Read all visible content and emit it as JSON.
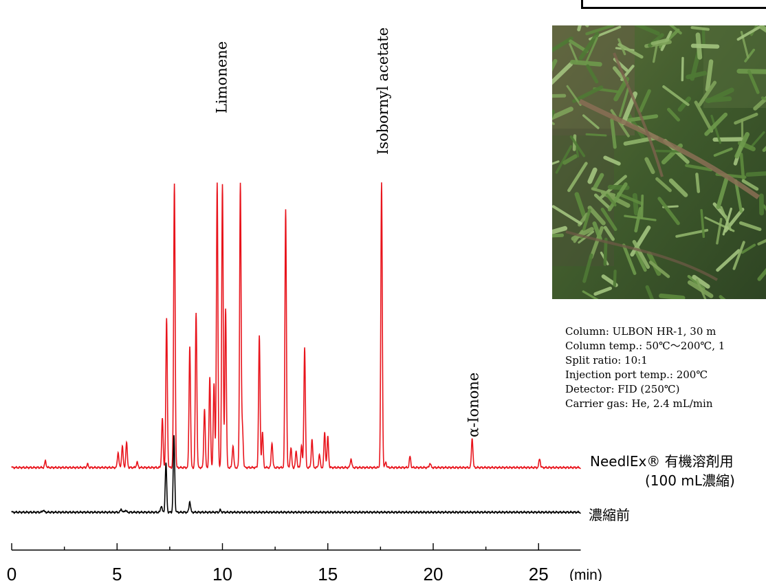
{
  "chart_data": {
    "type": "line",
    "xlabel": "(min)",
    "xlim": [
      0,
      27
    ],
    "x_ticks": [
      0,
      5,
      10,
      15,
      20,
      25
    ],
    "series": [
      {
        "name": "NeedlEx® 有機溶剤用",
        "sublabel": "(100 mL濃縮)",
        "color": "#e8141c",
        "peaks": [
          [
            1.6,
            0.06
          ],
          [
            3.6,
            0.03
          ],
          [
            5.05,
            0.14
          ],
          [
            5.25,
            0.2
          ],
          [
            5.45,
            0.23
          ],
          [
            5.95,
            0.05
          ],
          [
            7.15,
            0.45
          ],
          [
            7.35,
            1.36
          ],
          [
            7.72,
            2.6
          ],
          [
            8.45,
            1.11
          ],
          [
            8.75,
            1.42
          ],
          [
            9.15,
            0.54
          ],
          [
            9.4,
            0.82
          ],
          [
            9.6,
            0.77
          ],
          [
            9.75,
            2.6
          ],
          [
            10.0,
            2.6
          ],
          [
            10.15,
            1.46
          ],
          [
            10.5,
            0.2
          ],
          [
            10.85,
            2.6
          ],
          [
            10.95,
            0.36
          ],
          [
            11.75,
            1.2
          ],
          [
            11.9,
            0.32
          ],
          [
            12.35,
            0.23
          ],
          [
            13.0,
            2.36
          ],
          [
            13.25,
            0.18
          ],
          [
            13.5,
            0.15
          ],
          [
            13.75,
            0.2
          ],
          [
            13.9,
            1.1
          ],
          [
            14.25,
            0.26
          ],
          [
            14.6,
            0.12
          ],
          [
            14.85,
            0.32
          ],
          [
            15.0,
            0.28
          ],
          [
            16.1,
            0.08
          ],
          [
            17.55,
            2.6
          ],
          [
            17.75,
            0.05
          ],
          [
            18.9,
            0.1
          ],
          [
            19.85,
            0.04
          ],
          [
            21.85,
            0.27
          ],
          [
            25.05,
            0.08
          ]
        ]
      },
      {
        "name": "濃縮前",
        "color": "#000000",
        "peaks": [
          [
            1.5,
            0.02
          ],
          [
            5.2,
            0.03
          ],
          [
            5.4,
            0.02
          ],
          [
            7.1,
            0.06
          ],
          [
            7.32,
            0.45
          ],
          [
            7.7,
            0.7
          ],
          [
            8.45,
            0.1
          ],
          [
            9.9,
            0.02
          ]
        ]
      }
    ],
    "annotations": [
      {
        "text": "Limonene",
        "x": 9.9
      },
      {
        "text": "Isobornyl acetate",
        "x": 17.55
      },
      {
        "text": "α-Ionone",
        "x": 21.85
      }
    ],
    "conditions": [
      "Column: ULBON HR-1, 30 m",
      "Column temp.: 50℃〜200℃, 1",
      "Split ratio: 10:1",
      "Injection port temp.: 200℃",
      "Detector: FID (250℃)",
      "Carrier gas: He, 2.4 mL/min"
    ]
  }
}
